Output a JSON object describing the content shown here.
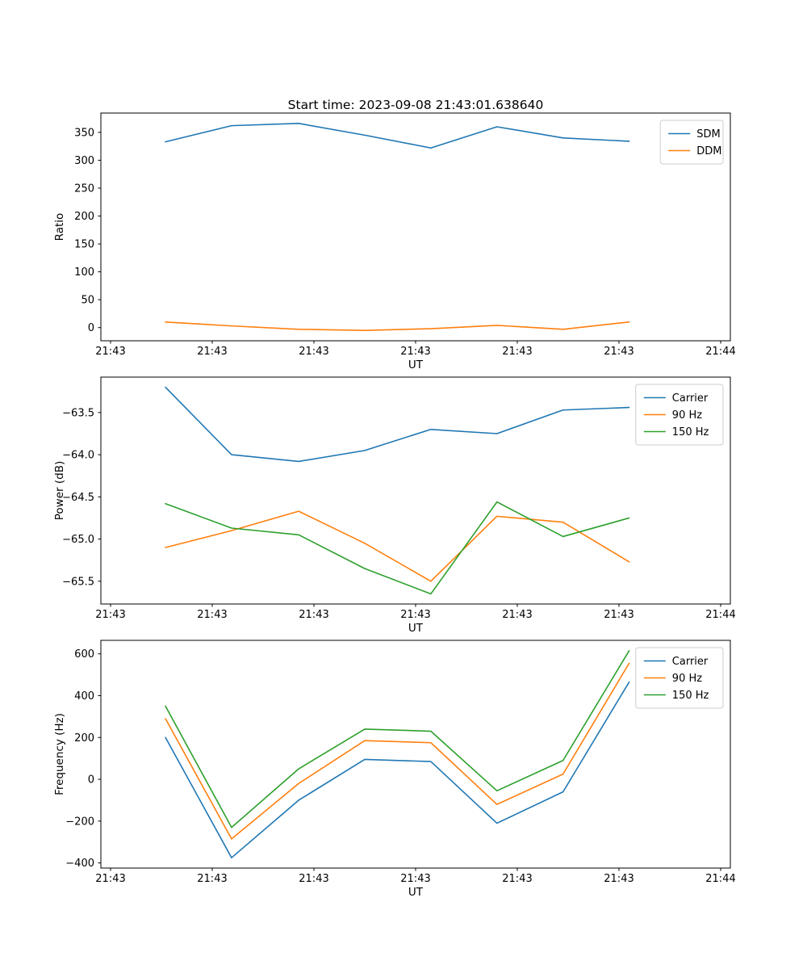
{
  "figure_title": "Start time: 2023-09-08 21:43:01.638640",
  "palette": {
    "blue": "#1f77b4",
    "orange": "#ff7f0e",
    "green": "#2ca02c"
  },
  "chart_data": [
    {
      "type": "line",
      "name": "ratio",
      "title": "Start time: 2023-09-08 21:43:01.638640",
      "xlabel": "UT",
      "ylabel": "Ratio",
      "legend_position": "upper right",
      "grid": false,
      "x_tick_labels": [
        "21:43",
        "21:43",
        "21:43",
        "21:43",
        "21:43",
        "21:43",
        "21:44"
      ],
      "y_tick_values": [
        0,
        50,
        100,
        150,
        200,
        250,
        300,
        350
      ],
      "y_tick_labels": [
        "0",
        "50",
        "100",
        "150",
        "200",
        "250",
        "300",
        "350"
      ],
      "ylim": [
        -23.6,
        384.6
      ],
      "x_offsets": [
        0.54,
        1.19,
        1.85,
        2.5,
        3.15,
        3.8,
        4.45,
        5.1
      ],
      "series": [
        {
          "name": "SDM",
          "color": "#1f77b4",
          "values": [
            333,
            362,
            366,
            345,
            322,
            360,
            340,
            334
          ]
        },
        {
          "name": "DDM",
          "color": "#ff7f0e",
          "values": [
            10,
            3,
            -3,
            -5,
            -2,
            4,
            -3,
            10
          ]
        }
      ]
    },
    {
      "type": "line",
      "name": "power",
      "title": "",
      "xlabel": "UT",
      "ylabel": "Power (dB)",
      "legend_position": "upper right",
      "grid": false,
      "x_tick_labels": [
        "21:43",
        "21:43",
        "21:43",
        "21:43",
        "21:43",
        "21:43",
        "21:44"
      ],
      "y_tick_values": [
        -63.5,
        -64.0,
        -64.5,
        -65.0,
        -65.5
      ],
      "y_tick_labels": [
        "−63.5",
        "−64.0",
        "−64.5",
        "−65.0",
        "−65.5"
      ],
      "ylim": [
        -65.77,
        -63.08
      ],
      "x_offsets": [
        0.54,
        1.19,
        1.85,
        2.5,
        3.15,
        3.8,
        4.45,
        5.1
      ],
      "series": [
        {
          "name": "Carrier",
          "color": "#1f77b4",
          "values": [
            -63.2,
            -64.0,
            -64.08,
            -63.95,
            -63.7,
            -63.75,
            -63.47,
            -63.44
          ]
        },
        {
          "name": "90 Hz",
          "color": "#ff7f0e",
          "values": [
            -65.1,
            -64.9,
            -64.67,
            -65.05,
            -65.5,
            -64.73,
            -64.8,
            -65.27
          ]
        },
        {
          "name": "150 Hz",
          "color": "#2ca02c",
          "values": [
            -64.58,
            -64.87,
            -64.95,
            -65.35,
            -65.65,
            -64.56,
            -64.97,
            -64.75
          ]
        }
      ]
    },
    {
      "type": "line",
      "name": "frequency",
      "title": "",
      "xlabel": "UT",
      "ylabel": "Frequency (Hz)",
      "legend_position": "upper right",
      "grid": false,
      "x_tick_labels": [
        "21:43",
        "21:43",
        "21:43",
        "21:43",
        "21:43",
        "21:43",
        "21:44"
      ],
      "y_tick_values": [
        -400,
        -200,
        0,
        200,
        400,
        600
      ],
      "y_tick_labels": [
        "−400",
        "−200",
        "0",
        "200",
        "400",
        "600"
      ],
      "ylim": [
        -424.5,
        664.5
      ],
      "x_offsets": [
        0.54,
        1.19,
        1.85,
        2.5,
        3.15,
        3.8,
        4.45,
        5.1
      ],
      "series": [
        {
          "name": "Carrier",
          "color": "#1f77b4",
          "values": [
            200,
            -375,
            -100,
            95,
            85,
            -210,
            -60,
            465
          ]
        },
        {
          "name": "90 Hz",
          "color": "#ff7f0e",
          "values": [
            290,
            -285,
            -20,
            185,
            175,
            -120,
            25,
            555
          ]
        },
        {
          "name": "150 Hz",
          "color": "#2ca02c",
          "values": [
            350,
            -230,
            50,
            240,
            230,
            -55,
            90,
            615
          ]
        }
      ]
    }
  ]
}
